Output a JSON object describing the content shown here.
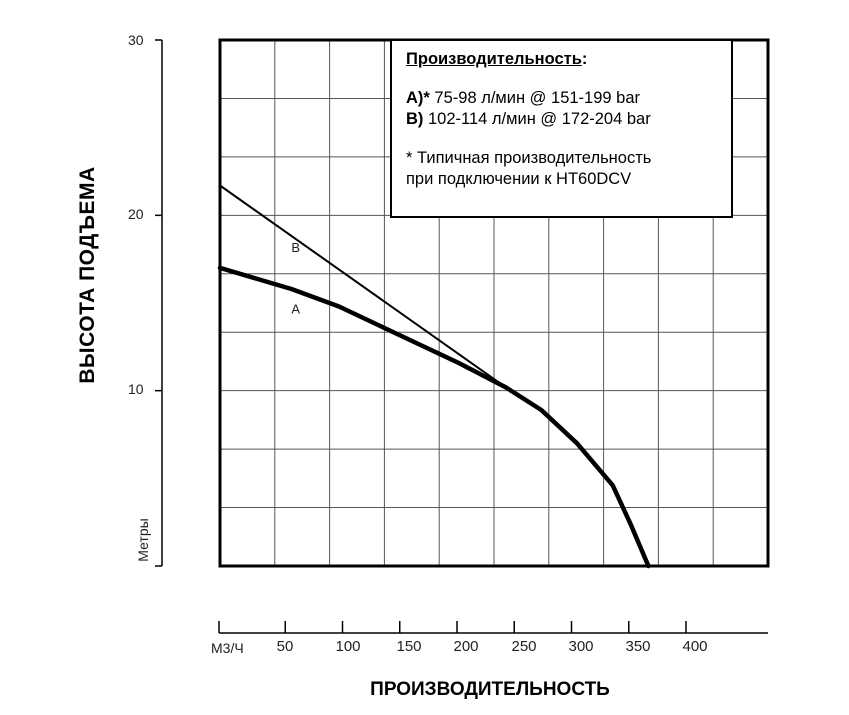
{
  "chart_data": {
    "type": "line",
    "xlabel": "ПРОИЗВОДИТЕЛЬНОСТЬ",
    "ylabel": "ВЫСОТА ПОДЪЕМА",
    "y_unit": "Метры",
    "x_unit": "М3/Ч",
    "xlim": [
      0,
      480
    ],
    "ylim": [
      0,
      30
    ],
    "x_ticks": [
      {
        "value": 50,
        "label": "50"
      },
      {
        "value": 100,
        "label": "100"
      },
      {
        "value": 150,
        "label": "150"
      },
      {
        "value": 200,
        "label": "200"
      },
      {
        "value": 250,
        "label": "250"
      },
      {
        "value": 300,
        "label": "300"
      },
      {
        "value": 350,
        "label": "350"
      },
      {
        "value": 400,
        "label": "400"
      }
    ],
    "y_ticks": [
      {
        "value": 10,
        "label": "10"
      },
      {
        "value": 20,
        "label": "20"
      },
      {
        "value": 30,
        "label": "30"
      }
    ],
    "grid": true,
    "series": [
      {
        "name": "A",
        "label": "A",
        "label_at": [
          60,
          14.4
        ],
        "stroke": "thick",
        "points": [
          [
            0,
            17
          ],
          [
            60,
            15.8
          ],
          [
            100,
            14.8
          ],
          [
            150,
            13.2
          ],
          [
            200,
            11.6
          ],
          [
            240,
            10.2
          ],
          [
            270,
            8.9
          ],
          [
            300,
            7.0
          ],
          [
            330,
            4.6
          ],
          [
            345,
            2.4
          ],
          [
            360,
            0
          ]
        ]
      },
      {
        "name": "B",
        "label": "B",
        "label_at": [
          60,
          17.9
        ],
        "stroke": "thin",
        "points": [
          [
            0,
            21.7
          ],
          [
            240,
            10.2
          ],
          [
            270,
            8.9
          ],
          [
            300,
            7.0
          ],
          [
            330,
            4.6
          ],
          [
            345,
            2.4
          ],
          [
            360,
            0
          ]
        ]
      }
    ],
    "legend": {
      "title": "Производительность",
      "title_suffix": ":",
      "line_a_key": "А)*",
      "line_a_text": " 75-98 л/мин @ 151-199 bar",
      "line_b_key": "В)",
      "line_b_text": " 102-114 л/мин @ 172-204 bar",
      "note_line_1": "* Типичная производительность",
      "note_line_2": "при подключении к HT60DCV"
    }
  }
}
